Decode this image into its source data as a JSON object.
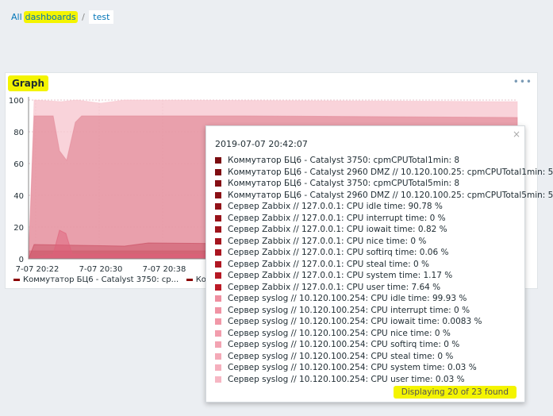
{
  "breadcrumb": {
    "all": "All",
    "dashboards": "dashboards",
    "separator": "/",
    "current": "test"
  },
  "widget": {
    "title": "Graph",
    "menu_icon": "ellipsis-icon",
    "menu": "•••"
  },
  "chart_data": {
    "type": "area",
    "yticks": [
      "100",
      "80",
      "60",
      "40",
      "20",
      "0"
    ],
    "ylim": [
      0,
      100
    ],
    "xticks": [
      "7-07 20:22",
      "7-07 20:30",
      "7-07 20:38"
    ],
    "legend": [
      "Коммутатор БЦ6 - Catalyst 3750: cp...",
      "Комм"
    ]
  },
  "tooltip": {
    "close": "×",
    "time": "2019-07-07 20:42:07",
    "items": [
      {
        "label": "Коммутатор БЦ6 - Catalyst 3750: cpmCPUTotal1min: 8",
        "color": "#7a0c10"
      },
      {
        "label": "Коммутатор БЦ6 - Catalyst 2960 DMZ // 10.120.100.25: cpmCPUTotal1min: 5",
        "color": "#7f0d12"
      },
      {
        "label": "Коммутатор БЦ6 - Catalyst 3750: cpmCPUTotal5min: 8",
        "color": "#850e14"
      },
      {
        "label": "Коммутатор БЦ6 - Catalyst 2960 DMZ // 10.120.100.25: cpmCPUTotal5min: 5",
        "color": "#8b1016"
      },
      {
        "label": "Сервер Zabbix // 127.0.0.1: CPU idle time: 90.78 %",
        "color": "#921118"
      },
      {
        "label": "Сервер Zabbix // 127.0.0.1: CPU interrupt time: 0 %",
        "color": "#98121a"
      },
      {
        "label": "Сервер Zabbix // 127.0.0.1: CPU iowait time: 0.82 %",
        "color": "#9e141c"
      },
      {
        "label": "Сервер Zabbix // 127.0.0.1: CPU nice time: 0 %",
        "color": "#a4151e"
      },
      {
        "label": "Сервер Zabbix // 127.0.0.1: CPU softirq time: 0.06 %",
        "color": "#aa1620"
      },
      {
        "label": "Сервер Zabbix // 127.0.0.1: CPU steal time: 0 %",
        "color": "#b01722"
      },
      {
        "label": "Сервер Zabbix // 127.0.0.1: CPU system time: 1.17 %",
        "color": "#b61824"
      },
      {
        "label": "Сервер Zabbix // 127.0.0.1: CPU user time: 7.64 %",
        "color": "#bc1a26"
      },
      {
        "label": "Сервер syslog // 10.120.100.254: CPU idle time: 99.93 %",
        "color": "#ef8fa0"
      },
      {
        "label": "Сервер syslog // 10.120.100.254: CPU interrupt time: 0 %",
        "color": "#f093a4"
      },
      {
        "label": "Сервер syslog // 10.120.100.254: CPU iowait time: 0.0083 %",
        "color": "#f198a8"
      },
      {
        "label": "Сервер syslog // 10.120.100.254: CPU nice time: 0 %",
        "color": "#f29dad"
      },
      {
        "label": "Сервер syslog // 10.120.100.254: CPU softirq time: 0 %",
        "color": "#f3a3b2"
      },
      {
        "label": "Сервер syslog // 10.120.100.254: CPU steal time: 0 %",
        "color": "#f4a9b7"
      },
      {
        "label": "Сервер syslog // 10.120.100.254: CPU system time: 0.03 %",
        "color": "#f5afbd"
      },
      {
        "label": "Сервер syslog // 10.120.100.254: CPU user time: 0.03 %",
        "color": "#f6b6c3"
      }
    ],
    "footer": "Displaying 20 of 23 found"
  }
}
